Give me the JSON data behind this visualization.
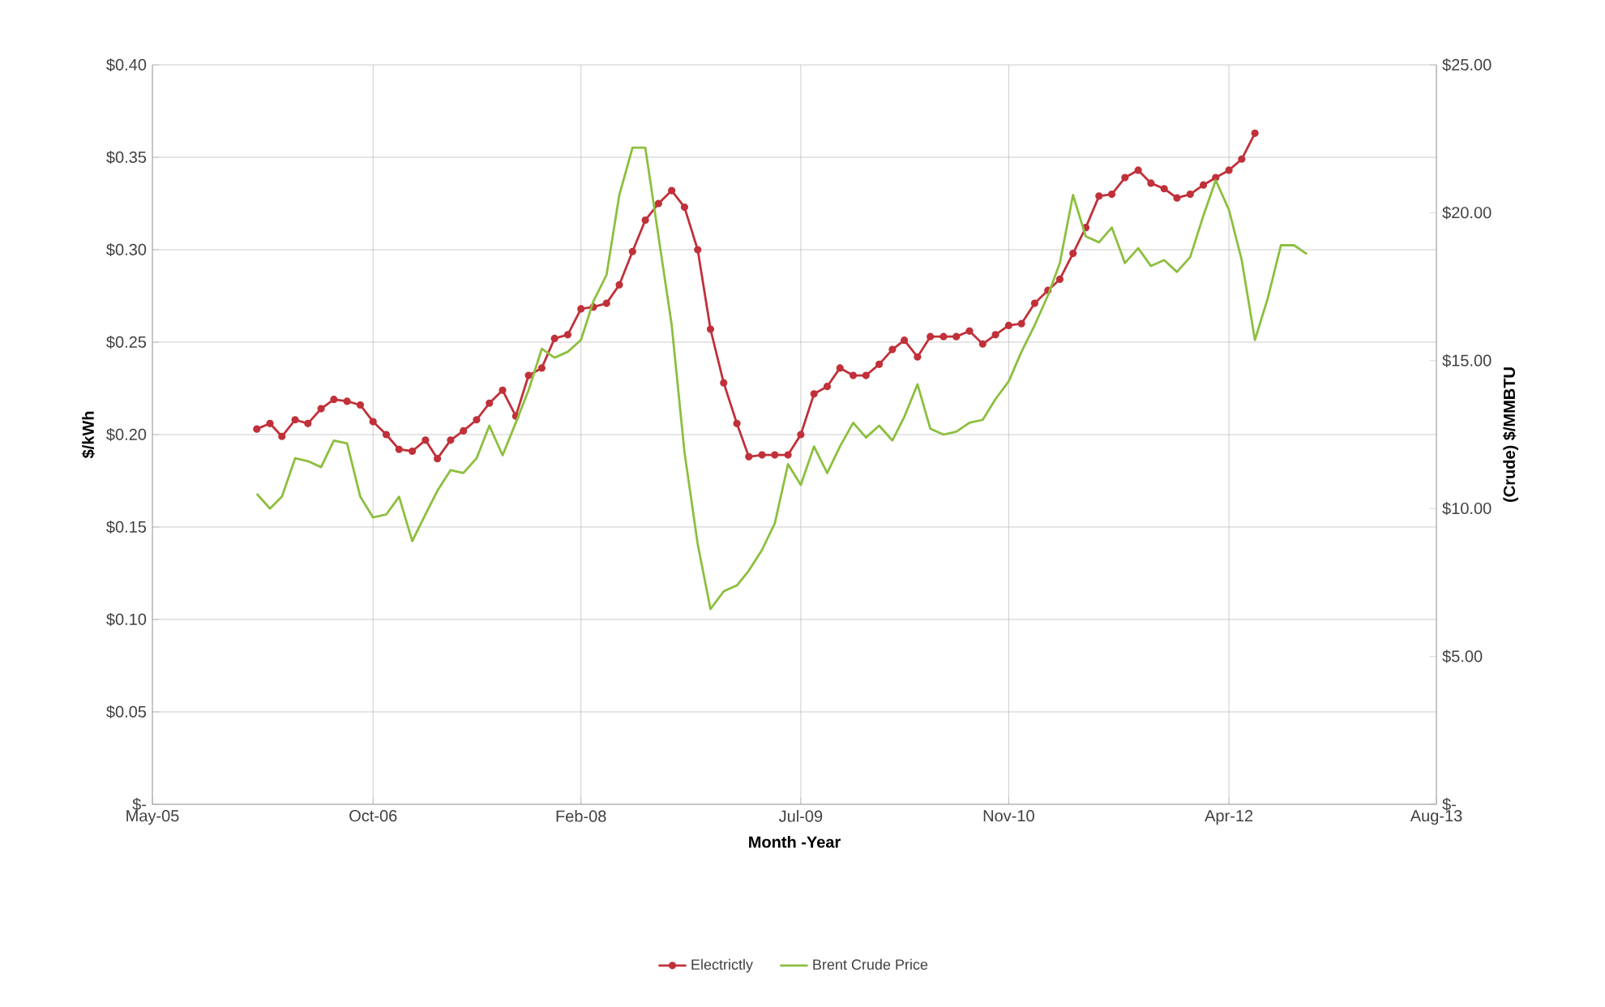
{
  "chart_data": {
    "type": "line",
    "xlabel": "Month -Year",
    "ylabel": "$/kWh",
    "y2label": "(Crude) $/MMBTU",
    "xlim": [
      "2005-05-01",
      "2013-08-01"
    ],
    "xticks": [
      {
        "value": "2005-05-01",
        "label": "May-05"
      },
      {
        "value": "2006-10-01",
        "label": "Oct-06"
      },
      {
        "value": "2008-02-01",
        "label": "Feb-08"
      },
      {
        "value": "2009-07-01",
        "label": "Jul-09"
      },
      {
        "value": "2010-11-01",
        "label": "Nov-10"
      },
      {
        "value": "2012-04-01",
        "label": "Apr-12"
      },
      {
        "value": "2013-08-01",
        "label": "Aug-13"
      }
    ],
    "ylim": [
      0,
      0.4
    ],
    "yticks": [
      {
        "value": 0,
        "label": "$-"
      },
      {
        "value": 0.05,
        "label": "$0.05"
      },
      {
        "value": 0.1,
        "label": "$0.10"
      },
      {
        "value": 0.15,
        "label": "$0.15"
      },
      {
        "value": 0.2,
        "label": "$0.20"
      },
      {
        "value": 0.25,
        "label": "$0.25"
      },
      {
        "value": 0.3,
        "label": "$0.30"
      },
      {
        "value": 0.35,
        "label": "$0.35"
      },
      {
        "value": 0.4,
        "label": "$0.40"
      }
    ],
    "y2lim": [
      0,
      25
    ],
    "y2ticks": [
      {
        "value": 0,
        "label": "$-"
      },
      {
        "value": 5,
        "label": "$5.00"
      },
      {
        "value": 10,
        "label": "$10.00"
      },
      {
        "value": 15,
        "label": "$15.00"
      },
      {
        "value": 20,
        "label": "$20.00"
      },
      {
        "value": 25,
        "label": "$25.00"
      }
    ],
    "grid": true,
    "legend": "bottom",
    "series": [
      {
        "name": "Electrictly",
        "color": "#c0313a",
        "marker": "circle",
        "x": [
          "2006-01",
          "2006-02",
          "2006-03",
          "2006-04",
          "2006-05",
          "2006-06",
          "2006-07",
          "2006-08",
          "2006-09",
          "2006-10",
          "2006-11",
          "2006-12",
          "2007-01",
          "2007-02",
          "2007-03",
          "2007-04",
          "2007-05",
          "2007-06",
          "2007-07",
          "2007-08",
          "2007-09",
          "2007-10",
          "2007-11",
          "2007-12",
          "2008-01",
          "2008-02",
          "2008-03",
          "2008-04",
          "2008-05",
          "2008-06",
          "2008-07",
          "2008-08",
          "2008-09",
          "2008-10",
          "2008-11",
          "2008-12",
          "2009-01",
          "2009-02",
          "2009-03",
          "2009-04",
          "2009-05",
          "2009-06",
          "2009-07",
          "2009-08",
          "2009-09",
          "2009-10",
          "2009-11",
          "2009-12",
          "2010-01",
          "2010-02",
          "2010-03",
          "2010-04",
          "2010-05",
          "2010-06",
          "2010-07",
          "2010-08",
          "2010-09",
          "2010-10",
          "2010-11",
          "2010-12",
          "2011-01",
          "2011-02",
          "2011-03",
          "2011-04",
          "2011-05",
          "2011-06",
          "2011-07",
          "2011-08",
          "2011-09",
          "2011-10",
          "2011-11",
          "2011-12",
          "2012-01",
          "2012-02",
          "2012-03",
          "2012-04",
          "2012-05",
          "2012-06"
        ],
        "values": [
          0.203,
          0.206,
          0.199,
          0.208,
          0.206,
          0.214,
          0.219,
          0.218,
          0.216,
          0.207,
          0.2,
          0.192,
          0.191,
          0.197,
          0.187,
          0.197,
          0.202,
          0.208,
          0.217,
          0.224,
          0.21,
          0.232,
          0.236,
          0.252,
          0.254,
          0.268,
          0.269,
          0.271,
          0.281,
          0.299,
          0.316,
          0.325,
          0.332,
          0.323,
          0.3,
          0.257,
          0.228,
          0.206,
          0.188,
          0.189,
          0.189,
          0.189,
          0.2,
          0.222,
          0.226,
          0.236,
          0.232,
          0.232,
          0.238,
          0.246,
          0.251,
          0.242,
          0.253,
          0.253,
          0.253,
          0.256,
          0.249,
          0.254,
          0.259,
          0.26,
          0.271,
          0.278,
          0.284,
          0.298,
          0.312,
          0.329,
          0.33,
          0.339,
          0.343,
          0.336,
          0.333,
          0.328,
          0.33,
          0.335,
          0.339,
          0.343,
          0.349,
          0.363
        ]
      },
      {
        "name": "Brent Crude Price",
        "color": "#8cbf3f",
        "marker": "none",
        "axis": "y2",
        "x": [
          "2006-01",
          "2006-02",
          "2006-03",
          "2006-04",
          "2006-05",
          "2006-06",
          "2006-07",
          "2006-08",
          "2006-09",
          "2006-10",
          "2006-11",
          "2006-12",
          "2007-01",
          "2007-02",
          "2007-03",
          "2007-04",
          "2007-05",
          "2007-06",
          "2007-07",
          "2007-08",
          "2007-09",
          "2007-10",
          "2007-11",
          "2007-12",
          "2008-01",
          "2008-02",
          "2008-03",
          "2008-04",
          "2008-05",
          "2008-06",
          "2008-07",
          "2008-08",
          "2008-09",
          "2008-10",
          "2008-11",
          "2008-12",
          "2009-01",
          "2009-02",
          "2009-03",
          "2009-04",
          "2009-05",
          "2009-06",
          "2009-07",
          "2009-08",
          "2009-09",
          "2009-10",
          "2009-11",
          "2009-12",
          "2010-01",
          "2010-02",
          "2010-03",
          "2010-04",
          "2010-05",
          "2010-06",
          "2010-07",
          "2010-08",
          "2010-09",
          "2010-10",
          "2010-11",
          "2010-12",
          "2011-01",
          "2011-02",
          "2011-03",
          "2011-04",
          "2011-05",
          "2011-06",
          "2011-07",
          "2011-08",
          "2011-09",
          "2011-10",
          "2011-11",
          "2011-12",
          "2012-01",
          "2012-02",
          "2012-03",
          "2012-04",
          "2012-05",
          "2012-06",
          "2012-07",
          "2012-08",
          "2012-09",
          "2012-10"
        ],
        "values": [
          10.5,
          10.0,
          10.4,
          11.7,
          11.6,
          11.4,
          12.3,
          12.2,
          10.4,
          9.7,
          9.8,
          10.4,
          8.9,
          9.8,
          10.6,
          11.3,
          11.2,
          11.7,
          12.8,
          11.8,
          12.9,
          14.0,
          15.4,
          15.1,
          15.3,
          15.7,
          17.0,
          17.9,
          20.6,
          22.2,
          22.2,
          19.2,
          16.2,
          11.9,
          8.8,
          6.6,
          7.2,
          7.4,
          7.9,
          8.6,
          9.5,
          11.5,
          10.8,
          12.1,
          11.2,
          12.1,
          12.9,
          12.4,
          12.8,
          12.3,
          13.1,
          14.2,
          12.7,
          12.5,
          12.6,
          12.9,
          13.0,
          13.7,
          14.3,
          15.3,
          16.2,
          17.2,
          18.3,
          20.6,
          19.2,
          19.0,
          19.5,
          18.3,
          18.8,
          18.2,
          18.4,
          18.0,
          18.5,
          19.9,
          21.1,
          20.1,
          18.4,
          15.7,
          17.1,
          18.9,
          18.9,
          18.6
        ]
      }
    ]
  }
}
